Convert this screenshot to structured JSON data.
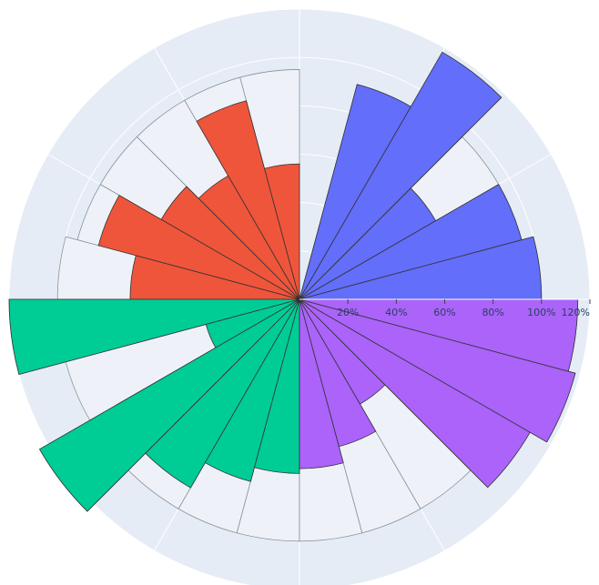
{
  "chart_data": {
    "type": "barpolar",
    "radial_axis": {
      "range": [
        0,
        120
      ],
      "unit": "%",
      "tick_labels": [
        "20%",
        "40%",
        "60%",
        "80%",
        "100%",
        "120%"
      ],
      "tick_values": [
        20,
        40,
        60,
        80,
        100,
        120
      ]
    },
    "angular_axis": {
      "direction": "counterclockwise",
      "rotation_deg": 0,
      "sector_width_deg": 15
    },
    "background_color": "#E5ECF6",
    "reference_bar_color": "#EEF2F8",
    "series": [
      {
        "color": "#636EFA",
        "theta": [
          7.5,
          22.5,
          37.5,
          52.5,
          67.5
        ],
        "values": [
          100,
          95,
          65,
          118,
          92
        ],
        "reference": [
          100,
          95,
          95,
          95,
          92
        ]
      },
      {
        "color": "#EF553B",
        "theta": [
          97.5,
          112.5,
          127.5,
          142.5,
          157.5,
          172.5
        ],
        "values": [
          56,
          85,
          59,
          66,
          86,
          70
        ],
        "reference": [
          95,
          95,
          95,
          95,
          95,
          100
        ]
      },
      {
        "color": "#00CC96",
        "theta": [
          187.5,
          202.5,
          217.5,
          232.5,
          247.5,
          262.5
        ],
        "values": [
          120,
          40,
          124,
          90,
          78,
          72
        ],
        "reference": [
          120,
          100,
          124,
          100,
          100,
          100
        ]
      },
      {
        "color": "#AB63FA",
        "theta": [
          277.5,
          292.5,
          307.5,
          322.5,
          337.5,
          352.5
        ],
        "values": [
          70,
          63,
          50,
          110,
          118,
          115
        ],
        "reference": [
          100,
          100,
          100,
          100,
          118,
          115
        ]
      }
    ]
  }
}
